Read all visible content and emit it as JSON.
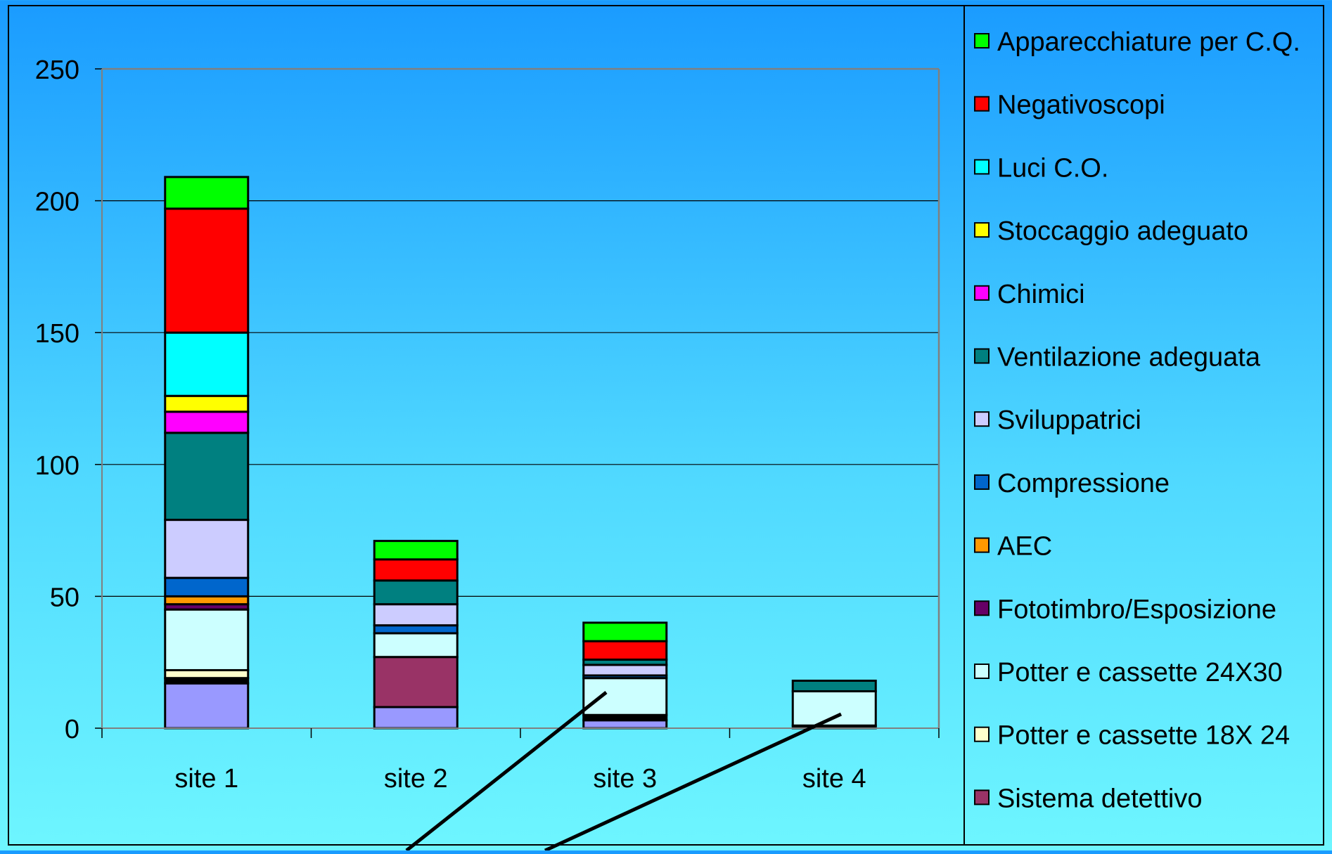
{
  "chart_data": {
    "type": "bar",
    "stacked": true,
    "title": "",
    "xlabel": "",
    "ylabel": "",
    "categories": [
      "site 1",
      "site 2",
      "site 3",
      "site 4"
    ],
    "ylim": [
      0,
      250
    ],
    "yticks": [
      0,
      50,
      100,
      150,
      200,
      250
    ],
    "grid": true,
    "legend_position": "right",
    "series": [
      {
        "name": "Sistema detettivo",
        "color": "#9999ff",
        "values": [
          17,
          8,
          3,
          0
        ]
      },
      {
        "name": "Sistema detettivo",
        "color": "#993366",
        "values": [
          0,
          19,
          0,
          0
        ]
      },
      {
        "name": "Sistema detettivo",
        "color": "#000000",
        "values": [
          2,
          0,
          2,
          1
        ]
      },
      {
        "name": "Potter e cassette 18X 24",
        "color": "#ffffcc",
        "values": [
          3,
          0,
          0,
          0
        ]
      },
      {
        "name": "Potter e cassette 24X30",
        "color": "#ccffff",
        "values": [
          23,
          9,
          14,
          13
        ]
      },
      {
        "name": "Fototimbro/Esposizione",
        "color": "#660066",
        "values": [
          2,
          0,
          0,
          0
        ]
      },
      {
        "name": "AEC",
        "color": "#ff9900",
        "values": [
          3,
          0,
          0,
          0
        ]
      },
      {
        "name": "Compressione",
        "color": "#0066cc",
        "values": [
          7,
          3,
          1,
          0
        ]
      },
      {
        "name": "Sviluppatrici",
        "color": "#ccccff",
        "values": [
          22,
          8,
          4,
          0
        ]
      },
      {
        "name": "Ventilazione adeguata",
        "color": "#008080",
        "values": [
          33,
          9,
          2,
          4
        ]
      },
      {
        "name": "Chimici",
        "color": "#ff00ff",
        "values": [
          8,
          0,
          0,
          0
        ]
      },
      {
        "name": "Stoccaggio adeguato",
        "color": "#ffff00",
        "values": [
          6,
          0,
          0,
          0
        ]
      },
      {
        "name": "Luci C.O.",
        "color": "#00ffff",
        "values": [
          24,
          0,
          0,
          0
        ]
      },
      {
        "name": "Negativoscopi",
        "color": "#ff0000",
        "values": [
          47,
          8,
          7,
          0
        ]
      },
      {
        "name": "Apparecchiature per C.Q.",
        "color": "#00ff00",
        "values": [
          12,
          7,
          7,
          0
        ]
      }
    ],
    "legend": [
      {
        "label": "Apparecchiature per C.Q.",
        "color": "#00ff00"
      },
      {
        "label": "Negativoscopi",
        "color": "#ff0000"
      },
      {
        "label": "Luci C.O.",
        "color": "#00ffff"
      },
      {
        "label": "Stoccaggio adeguato",
        "color": "#ffff00"
      },
      {
        "label": "Chimici",
        "color": "#ff00ff"
      },
      {
        "label": "Ventilazione adeguata",
        "color": "#008080"
      },
      {
        "label": "Sviluppatrici",
        "color": "#ccccff"
      },
      {
        "label": "Compressione",
        "color": "#0066cc"
      },
      {
        "label": "AEC",
        "color": "#ff9900"
      },
      {
        "label": "Fototimbro/Esposizione",
        "color": "#660066"
      },
      {
        "label": "Potter e cassette 24X30",
        "color": "#ccffff"
      },
      {
        "label": "Potter e cassette 18X 24",
        "color": "#ffffcc"
      },
      {
        "label": "Sistema detettivo",
        "color": "#993366"
      }
    ],
    "colors": {
      "plot_area": "transparent",
      "gridline": "#000000",
      "axis": "#808080"
    }
  }
}
